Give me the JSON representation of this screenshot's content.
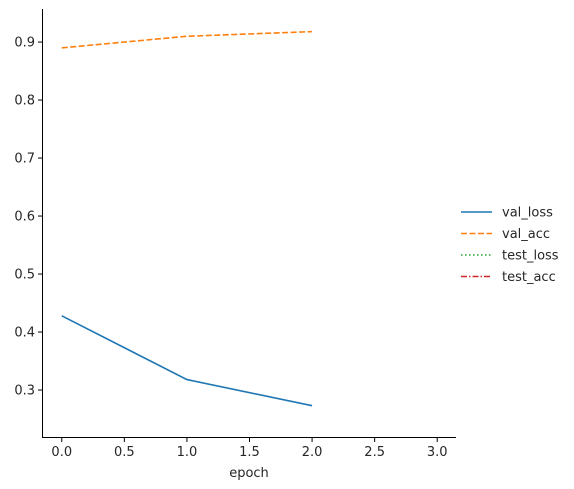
{
  "chart_data": {
    "type": "line",
    "xlabel": "epoch",
    "ylabel": "",
    "xlim": [
      -0.15,
      3.15
    ],
    "ylim": [
      0.219,
      0.957
    ],
    "xticks": [
      0.0,
      0.5,
      1.0,
      1.5,
      2.0,
      2.5,
      3.0
    ],
    "xtick_labels": [
      "0.0",
      "0.5",
      "1.0",
      "1.5",
      "2.0",
      "2.5",
      "3.0"
    ],
    "yticks": [
      0.3,
      0.4,
      0.5,
      0.6,
      0.7,
      0.8,
      0.9
    ],
    "ytick_labels": [
      "0.3",
      "0.4",
      "0.5",
      "0.6",
      "0.7",
      "0.8",
      "0.9"
    ],
    "grid": false,
    "legend_position": "right",
    "series": [
      {
        "name": "val_loss",
        "x": [
          0,
          1,
          2
        ],
        "y": [
          0.428,
          0.318,
          0.273
        ],
        "color": "#1f77b4",
        "dash": "solid"
      },
      {
        "name": "val_acc",
        "x": [
          0,
          1,
          2
        ],
        "y": [
          0.89,
          0.91,
          0.918
        ],
        "color": "#ff7f0e",
        "dash": "dashed"
      },
      {
        "name": "test_loss",
        "x": [],
        "y": [],
        "color": "#2ca02c",
        "dash": "dotted"
      },
      {
        "name": "test_acc",
        "x": [],
        "y": [],
        "color": "#d62728",
        "dash": "dashdot"
      }
    ]
  }
}
